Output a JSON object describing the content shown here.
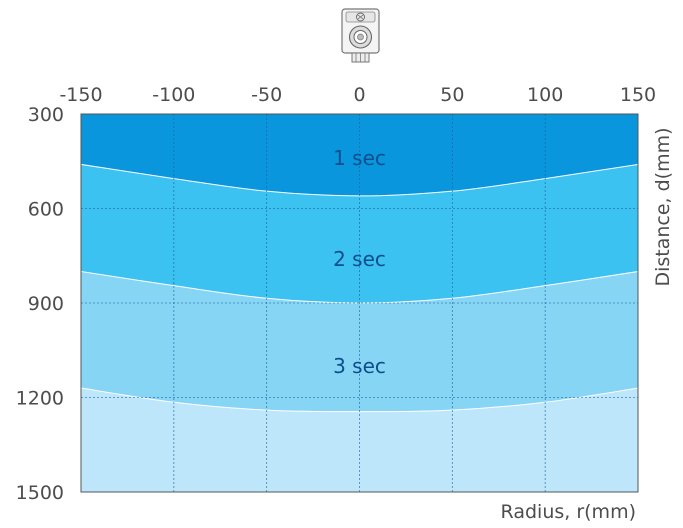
{
  "chart_data": {
    "type": "area",
    "title": "",
    "xlabel": "Radius, r(mm)",
    "ylabel": "Distance, d(mm)",
    "xlim": [
      -150,
      150
    ],
    "ylim": [
      300,
      1500
    ],
    "y_inverted": true,
    "x_ticks": [
      -150,
      -100,
      -50,
      0,
      50,
      100,
      150
    ],
    "y_ticks": [
      300,
      600,
      900,
      1200,
      1500
    ],
    "x_tick_labels": [
      "-150",
      "-100",
      "-50",
      "0",
      "50",
      "100",
      "150"
    ],
    "y_tick_labels": [
      "300",
      "600",
      "900",
      "1200",
      "1500"
    ],
    "x_axis_position": "top",
    "y_axis_position": "left",
    "grid": true,
    "x": [
      -150,
      -100,
      -50,
      0,
      50,
      100,
      150
    ],
    "series": [
      {
        "name": "1 sec",
        "boundary_d": [
          460,
          505,
          545,
          560,
          545,
          505,
          460
        ],
        "color": "#0a96dd"
      },
      {
        "name": "2 sec",
        "boundary_d": [
          800,
          845,
          885,
          900,
          885,
          845,
          800
        ],
        "color": "#3cc2f0"
      },
      {
        "name": "3 sec",
        "boundary_d": [
          1170,
          1215,
          1240,
          1245,
          1240,
          1215,
          1170
        ],
        "color": "#86d5f4"
      },
      {
        "name": "",
        "boundary_d": [
          1500,
          1500,
          1500,
          1500,
          1500,
          1500,
          1500
        ],
        "color": "#bde6fa"
      }
    ],
    "zone_label_positions": [
      {
        "x": 0,
        "d": 440
      },
      {
        "x": 0,
        "d": 760
      },
      {
        "x": 0,
        "d": 1100
      }
    ],
    "device_icon": "camera-sensor-icon"
  }
}
